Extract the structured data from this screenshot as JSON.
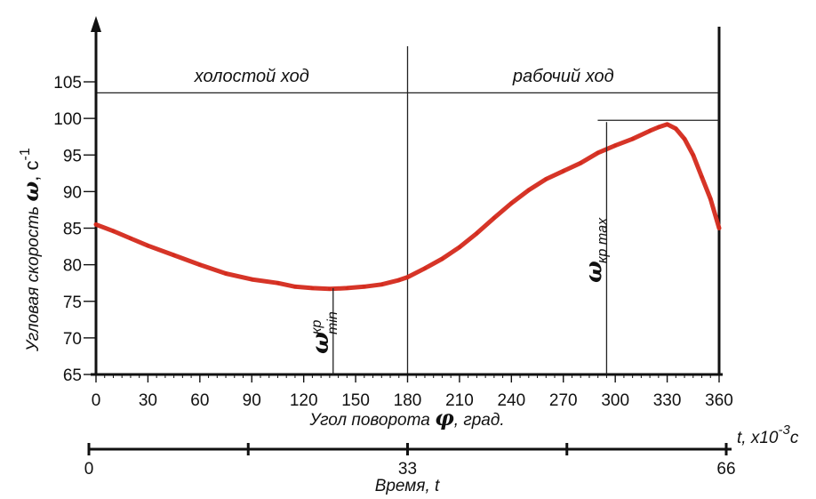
{
  "chart_data": {
    "type": "line",
    "ylabel": {
      "text": "Угловая скорость",
      "symbol": "ω",
      "unit": ", с",
      "unit_exp": "-1"
    },
    "xlabel": {
      "text": "Угол поворота",
      "symbol": "φ",
      "unit": ", град."
    },
    "time_axis": {
      "label": "Время, t",
      "unit_label": "t, x10",
      "unit_exp": "-3",
      "unit_suffix": "с",
      "ticks": [
        {
          "value": 0,
          "label": "0"
        },
        {
          "value": 16.5,
          "label": ""
        },
        {
          "value": 33,
          "label": "33"
        },
        {
          "value": 49.5,
          "label": ""
        },
        {
          "value": 66,
          "label": "66"
        }
      ],
      "range": [
        0,
        66
      ]
    },
    "xlim": [
      0,
      360
    ],
    "ylim": [
      65,
      110
    ],
    "xticks": [
      0,
      30,
      60,
      90,
      120,
      150,
      180,
      210,
      240,
      270,
      300,
      330,
      360
    ],
    "yticks": [
      65,
      70,
      75,
      80,
      85,
      90,
      95,
      100,
      105
    ],
    "regions": [
      {
        "label": "холостой ход",
        "x_center": 90
      },
      {
        "label": "рабочий ход",
        "x_center": 270
      }
    ],
    "boundary_x": 180,
    "top_line_y": 103.5,
    "annotations": [
      {
        "name": "omega-kr-min",
        "symbol": "ω",
        "sub_top": "кр",
        "sub_bottom": "min",
        "x": 137,
        "y": 76.8
      },
      {
        "name": "omega-kr-max",
        "symbol": "ω",
        "sub": "кр max",
        "x": 295,
        "y": 99.5
      }
    ],
    "series": [
      {
        "color": "#d42a1c",
        "x": [
          0,
          10,
          20,
          30,
          45,
          60,
          75,
          90,
          105,
          115,
          125,
          135,
          145,
          155,
          165,
          175,
          180,
          190,
          200,
          210,
          220,
          230,
          240,
          250,
          260,
          270,
          280,
          290,
          300,
          310,
          320,
          325,
          330,
          335,
          340,
          345,
          350,
          355,
          360
        ],
        "y": [
          85.5,
          84.6,
          83.6,
          82.6,
          81.3,
          80.0,
          78.8,
          78.0,
          77.5,
          77.0,
          76.8,
          76.7,
          76.8,
          77.0,
          77.3,
          77.9,
          78.3,
          79.5,
          80.8,
          82.4,
          84.3,
          86.4,
          88.4,
          90.2,
          91.7,
          92.8,
          93.9,
          95.3,
          96.3,
          97.2,
          98.3,
          98.8,
          99.2,
          98.6,
          97.2,
          95.0,
          92.0,
          89.0,
          85.0
        ]
      }
    ]
  }
}
